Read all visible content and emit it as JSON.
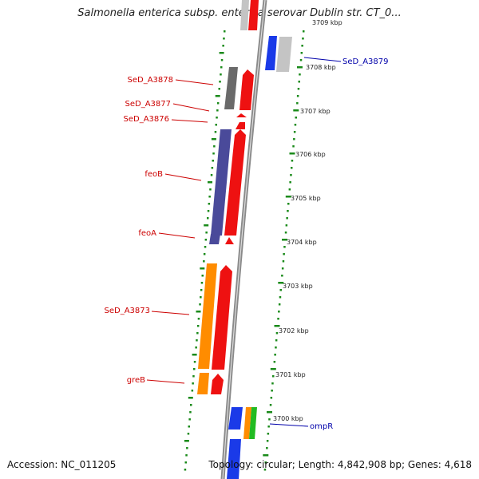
{
  "title": "Salmonella enterica subsp. enterica serovar Dublin str. CT_0...",
  "accession": "Accession: NC_011205",
  "stats": "Topology: circular; Length: 4,842,908 bp; Genes: 4,618",
  "colors": {
    "backbone": "#8a8a8a",
    "dots": "#1a8a1a",
    "forward_label": "#cc0000",
    "reverse_label": "#0000aa",
    "cds": "#ee1111",
    "gene_gray": "#6a6a6a",
    "gene_lightgray": "#c4c4c4",
    "gene_purple": "#4a4a9a",
    "gene_orange": "#ff8c00",
    "gene_blue": "#1a3ae8",
    "gene_green": "#22bb22"
  },
  "ticks": [
    {
      "label": "3709 kbp"
    },
    {
      "label": "3708 kbp"
    },
    {
      "label": "3707 kbp"
    },
    {
      "label": "3706 kbp"
    },
    {
      "label": "3705 kbp"
    },
    {
      "label": "3704 kbp"
    },
    {
      "label": "3703 kbp"
    },
    {
      "label": "3702 kbp"
    },
    {
      "label": "3701 kbp"
    },
    {
      "label": "3700 kbp"
    }
  ],
  "gene_labels": [
    {
      "label": "SeD_A3878",
      "strand": "forward"
    },
    {
      "label": "SeD_A3877",
      "strand": "forward"
    },
    {
      "label": "SeD_A3876",
      "strand": "forward"
    },
    {
      "label": "feoB",
      "strand": "forward"
    },
    {
      "label": "feoA",
      "strand": "forward"
    },
    {
      "label": "SeD_A3873",
      "strand": "forward"
    },
    {
      "label": "greB",
      "strand": "forward"
    },
    {
      "label": "SeD_A3879",
      "strand": "reverse"
    },
    {
      "label": "ompR",
      "strand": "reverse"
    }
  ]
}
